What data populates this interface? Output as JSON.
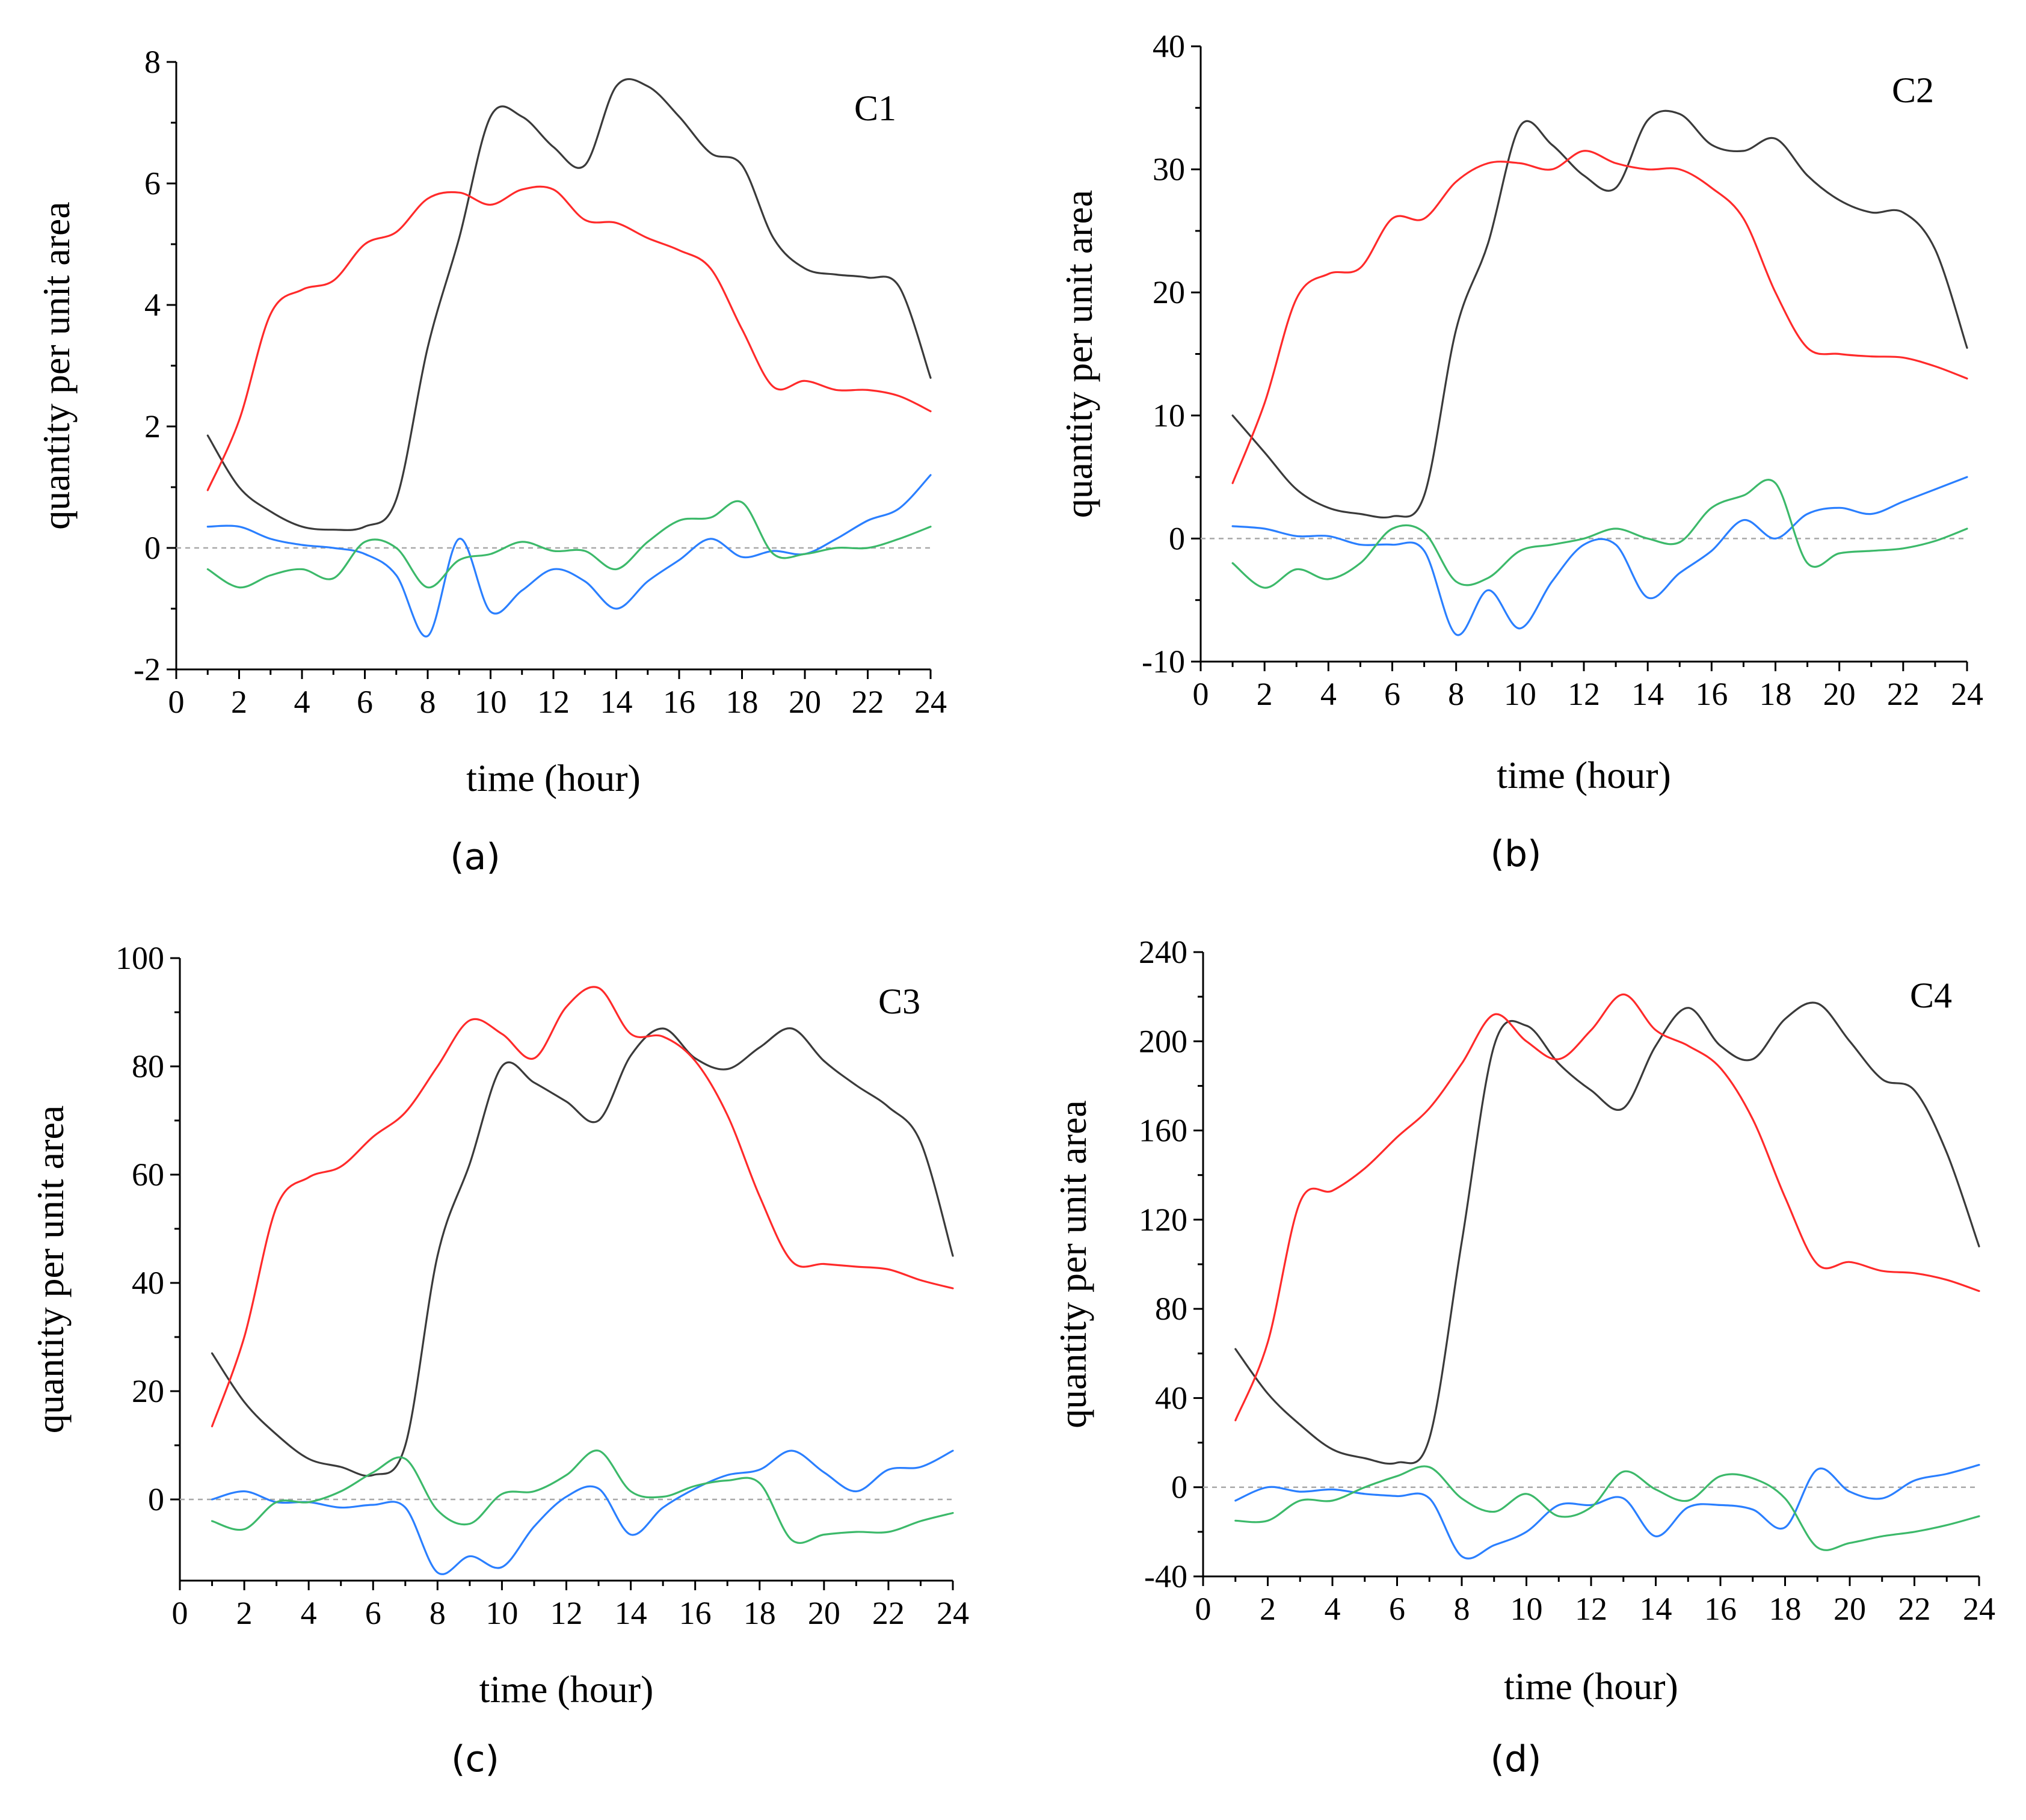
{
  "figure": {
    "colors": {
      "black": "#3a3a3a",
      "red": "#ff2a2a",
      "blue": "#2a7fff",
      "green": "#3cb96a"
    }
  },
  "chart_data": [
    {
      "type": "line",
      "panel_label": "C1",
      "caption": "(a)",
      "xlabel": "time (hour)",
      "ylabel": "quantity per unit area",
      "xlim": [
        0,
        24
      ],
      "ylim": [
        -2,
        8
      ],
      "xticks": [
        0,
        2,
        4,
        6,
        8,
        10,
        12,
        14,
        16,
        18,
        20,
        22,
        24
      ],
      "yticks": [
        -2,
        0,
        2,
        4,
        6,
        8
      ],
      "x": [
        1,
        2,
        3,
        4,
        5,
        6,
        7,
        8,
        9,
        10,
        11,
        12,
        13,
        14,
        15,
        16,
        17,
        18,
        19,
        20,
        21,
        22,
        23,
        24
      ],
      "series": [
        {
          "name": "black",
          "color": "#3a3a3a",
          "values": [
            1.85,
            1.0,
            0.6,
            0.35,
            0.3,
            0.35,
            0.8,
            3.3,
            5.1,
            7.1,
            7.1,
            6.6,
            6.3,
            7.6,
            7.6,
            7.1,
            6.5,
            6.3,
            5.1,
            4.6,
            4.5,
            4.45,
            4.3,
            2.8
          ]
        },
        {
          "name": "red",
          "color": "#ff2a2a",
          "values": [
            0.95,
            2.1,
            3.85,
            4.25,
            4.4,
            5.0,
            5.2,
            5.75,
            5.85,
            5.65,
            5.9,
            5.9,
            5.4,
            5.35,
            5.1,
            4.9,
            4.6,
            3.6,
            2.65,
            2.75,
            2.6,
            2.6,
            2.5,
            2.25
          ]
        },
        {
          "name": "blue",
          "color": "#2a7fff",
          "values": [
            0.35,
            0.35,
            0.15,
            0.05,
            0.0,
            -0.1,
            -0.45,
            -1.45,
            0.15,
            -1.05,
            -0.7,
            -0.35,
            -0.55,
            -1.0,
            -0.55,
            -0.2,
            0.15,
            -0.15,
            -0.05,
            -0.1,
            0.15,
            0.45,
            0.65,
            1.2
          ]
        },
        {
          "name": "green",
          "color": "#3cb96a",
          "values": [
            -0.35,
            -0.65,
            -0.45,
            -0.35,
            -0.5,
            0.1,
            0.0,
            -0.65,
            -0.2,
            -0.1,
            0.1,
            -0.05,
            -0.05,
            -0.35,
            0.1,
            0.45,
            0.5,
            0.75,
            -0.1,
            -0.1,
            0.0,
            0.0,
            0.15,
            0.35
          ]
        }
      ]
    },
    {
      "type": "line",
      "panel_label": "C2",
      "caption": "(b)",
      "xlabel": "time (hour)",
      "ylabel": "quantity per unit area",
      "xlim": [
        0,
        24
      ],
      "ylim": [
        -10,
        40
      ],
      "xticks": [
        0,
        2,
        4,
        6,
        8,
        10,
        12,
        14,
        16,
        18,
        20,
        22,
        24
      ],
      "yticks": [
        -10,
        0,
        10,
        20,
        30,
        40
      ],
      "x": [
        1,
        2,
        3,
        4,
        5,
        6,
        7,
        8,
        9,
        10,
        11,
        12,
        13,
        14,
        15,
        16,
        17,
        18,
        19,
        20,
        21,
        22,
        23,
        24
      ],
      "series": [
        {
          "name": "black",
          "color": "#3a3a3a",
          "values": [
            10.0,
            7.0,
            4.0,
            2.5,
            2.0,
            1.8,
            3.5,
            17.0,
            24.0,
            33.5,
            32.0,
            29.5,
            28.5,
            34.0,
            34.5,
            32.0,
            31.5,
            32.5,
            29.5,
            27.5,
            26.5,
            26.5,
            23.5,
            15.5
          ]
        },
        {
          "name": "red",
          "color": "#ff2a2a",
          "values": [
            4.5,
            11.0,
            19.5,
            21.5,
            22.0,
            26.0,
            26.0,
            29.0,
            30.5,
            30.5,
            30.0,
            31.5,
            30.5,
            30.0,
            30.0,
            28.5,
            26.0,
            20.0,
            15.5,
            15.0,
            14.8,
            14.7,
            14.0,
            13.0
          ]
        },
        {
          "name": "blue",
          "color": "#2a7fff",
          "values": [
            1.0,
            0.8,
            0.2,
            0.2,
            -0.5,
            -0.5,
            -1.0,
            -7.8,
            -4.2,
            -7.3,
            -3.5,
            -0.5,
            -0.5,
            -4.8,
            -2.8,
            -1.0,
            1.5,
            0.0,
            2.0,
            2.5,
            2.0,
            3.0,
            4.0,
            5.0
          ]
        },
        {
          "name": "green",
          "color": "#3cb96a",
          "values": [
            -2.0,
            -4.0,
            -2.5,
            -3.3,
            -2.0,
            0.8,
            0.5,
            -3.5,
            -3.2,
            -1.0,
            -0.5,
            0.0,
            0.8,
            0.0,
            -0.3,
            2.5,
            3.5,
            4.5,
            -2.0,
            -1.2,
            -1.0,
            -0.8,
            -0.2,
            0.8
          ]
        }
      ]
    },
    {
      "type": "line",
      "panel_label": "C3",
      "caption": "(c)",
      "xlabel": "time (hour)",
      "ylabel": "quantity per unit area",
      "xlim": [
        0,
        24
      ],
      "ylim": [
        -15,
        100
      ],
      "xticks": [
        0,
        2,
        4,
        6,
        8,
        10,
        12,
        14,
        16,
        18,
        20,
        22,
        24
      ],
      "yticks": [
        0,
        20,
        40,
        60,
        80,
        100
      ],
      "x": [
        1,
        2,
        3,
        4,
        5,
        6,
        7,
        8,
        9,
        10,
        11,
        12,
        13,
        14,
        15,
        16,
        17,
        18,
        19,
        20,
        21,
        22,
        23,
        24
      ],
      "series": [
        {
          "name": "black",
          "color": "#3a3a3a",
          "values": [
            27.0,
            18.0,
            12.0,
            7.5,
            6.0,
            4.5,
            10.0,
            45.0,
            62.0,
            80.0,
            77.0,
            73.5,
            70.0,
            82.0,
            87.0,
            81.5,
            79.5,
            83.5,
            87.0,
            81.0,
            76.5,
            72.5,
            66.0,
            45.0
          ]
        },
        {
          "name": "red",
          "color": "#ff2a2a",
          "values": [
            13.5,
            30.0,
            54.0,
            59.5,
            61.5,
            67.0,
            71.5,
            80.0,
            88.5,
            86.0,
            81.5,
            91.0,
            94.5,
            86.0,
            85.5,
            81.0,
            71.0,
            56.0,
            44.0,
            43.5,
            43.0,
            42.5,
            40.5,
            39.0
          ]
        },
        {
          "name": "blue",
          "color": "#2a7fff",
          "values": [
            0.0,
            1.5,
            -0.5,
            -0.5,
            -1.5,
            -1.0,
            -1.5,
            -13.5,
            -10.5,
            -12.5,
            -5.0,
            0.5,
            2.0,
            -6.5,
            -1.5,
            2.0,
            4.5,
            5.5,
            9.0,
            5.0,
            1.5,
            5.5,
            6.0,
            9.0
          ]
        },
        {
          "name": "green",
          "color": "#3cb96a",
          "values": [
            -4.0,
            -5.5,
            -0.5,
            -0.5,
            1.5,
            5.0,
            7.5,
            -2.0,
            -4.5,
            1.0,
            1.5,
            4.5,
            9.0,
            1.5,
            0.5,
            2.5,
            3.5,
            3.0,
            -7.5,
            -6.5,
            -6.0,
            -6.0,
            -4.0,
            -2.5
          ]
        }
      ]
    },
    {
      "type": "line",
      "panel_label": "C4",
      "caption": "(d)",
      "xlabel": "time (hour)",
      "ylabel": "quantity per unit area",
      "xlim": [
        0,
        24
      ],
      "ylim": [
        -40,
        240
      ],
      "xticks": [
        0,
        2,
        4,
        6,
        8,
        10,
        12,
        14,
        16,
        18,
        20,
        22,
        24
      ],
      "yticks": [
        -40,
        0,
        40,
        80,
        120,
        160,
        200,
        240
      ],
      "x": [
        1,
        2,
        3,
        4,
        5,
        6,
        7,
        8,
        9,
        10,
        11,
        12,
        13,
        14,
        15,
        16,
        17,
        18,
        19,
        20,
        21,
        22,
        23,
        24
      ],
      "series": [
        {
          "name": "black",
          "color": "#3a3a3a",
          "values": [
            62.0,
            42.0,
            28.0,
            17.0,
            13.0,
            11.0,
            22.0,
            110.0,
            198.0,
            207.0,
            190.0,
            178.0,
            170.0,
            198.0,
            215.0,
            198.0,
            192.0,
            210.0,
            217.0,
            200.0,
            183.0,
            178.0,
            150.0,
            108.0
          ]
        },
        {
          "name": "red",
          "color": "#ff2a2a",
          "values": [
            30.0,
            65.0,
            128.0,
            133.0,
            143.0,
            157.0,
            170.0,
            190.0,
            212.0,
            200.0,
            192.0,
            205.0,
            221.0,
            205.0,
            198.0,
            188.0,
            165.0,
            130.0,
            100.0,
            101.0,
            97.0,
            96.0,
            93.0,
            88.0
          ]
        },
        {
          "name": "blue",
          "color": "#2a7fff",
          "values": [
            -6.0,
            0.0,
            -2.0,
            -1.0,
            -3.0,
            -4.0,
            -5.0,
            -31.0,
            -26.0,
            -20.0,
            -8.0,
            -8.0,
            -5.0,
            -22.0,
            -9.0,
            -8.0,
            -10.0,
            -18.0,
            8.0,
            -2.0,
            -5.0,
            3.0,
            6.0,
            10.0
          ]
        },
        {
          "name": "green",
          "color": "#3cb96a",
          "values": [
            -15.0,
            -15.0,
            -6.0,
            -6.0,
            0.0,
            5.0,
            9.0,
            -5.0,
            -11.0,
            -3.0,
            -13.0,
            -9.0,
            7.0,
            -1.0,
            -6.0,
            5.0,
            4.0,
            -5.0,
            -27.0,
            -25.0,
            -22.0,
            -20.0,
            -17.0,
            -13.0
          ]
        }
      ]
    }
  ]
}
